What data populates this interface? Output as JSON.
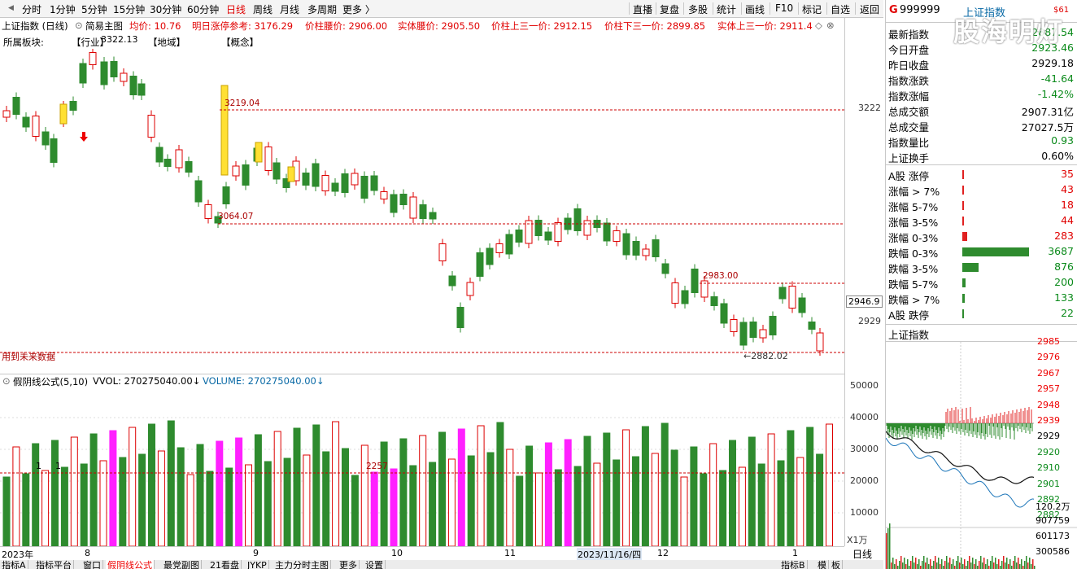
{
  "toolbar": {
    "left_items": [
      "分时",
      "1分钟",
      "5分钟",
      "15分钟",
      "30分钟",
      "60分钟",
      "日线",
      "周线",
      "月线",
      "多周期",
      "更多 〉"
    ],
    "active": "日线",
    "right_items": [
      "直播",
      "复盘",
      "多股",
      "统计",
      "画线",
      "F10",
      "标记",
      "自选",
      "返回"
    ]
  },
  "header": {
    "title": "上证指数 (日线)",
    "template": "简易主图",
    "junjia": "均价: 10.76",
    "zhangting": "明日涨停参考: 3176.29",
    "yaojia": "价柱腰价: 2906.00",
    "shiti_yao": "实体腰价: 2905.50",
    "zhushang": "价柱上三一价: 2912.15",
    "zhuxia": "价柱下三一价: 2899.85",
    "shitishang": "实体上三一价: 2911.4",
    "sector_label": "所属板块:",
    "industry": "【行业】",
    "region": "【地域】",
    "concept": "【概念】"
  },
  "annotations": {
    "high": "3322.13",
    "level1": "3219.04",
    "level2": "3064.07",
    "level3": "2983.00",
    "low": "←2882.02",
    "future_data": "用到未来数据",
    "vol_level": "2257"
  },
  "price_axis": {
    "labels": [
      "3222",
      "2929"
    ],
    "current_price_tag": "2946.9"
  },
  "volume_axis": {
    "labels": [
      "50000",
      "40000",
      "30000",
      "20000",
      "10000"
    ],
    "unit": "X1万"
  },
  "volume_header": {
    "title": "假阴线公式(5,10)",
    "vvol": "VVOL: 270275040.00↓",
    "volume": "VOLUME: 270275040.00↓"
  },
  "date_axis": {
    "labels": [
      "2023年",
      "8",
      "9",
      "10",
      "11",
      "2023/11/16/四",
      "12",
      "1"
    ]
  },
  "bottom_tabs": [
    "指标A",
    "指标平台",
    "窗口",
    "假阴线公式",
    "最党副图",
    "21看盘",
    "JYKP",
    "主力分时主图",
    "更多",
    "设置"
  ],
  "bottom_right_tabs": [
    "指标B",
    "模",
    "板"
  ],
  "bottom_right_label": "日线",
  "right_panel": {
    "code": "999999",
    "name": "上证指数",
    "g_label": "G",
    "badge": "$61",
    "stats": [
      {
        "k": "最新指数",
        "v": "2887.54",
        "c": "green"
      },
      {
        "k": "今日开盘",
        "v": "2923.46",
        "c": "green"
      },
      {
        "k": "昨日收盘",
        "v": "2929.18",
        "c": "black"
      },
      {
        "k": "指数涨跌",
        "v": "-41.64",
        "c": "green"
      },
      {
        "k": "指数涨幅",
        "v": "-1.42%",
        "c": "green"
      },
      {
        "k": "总成交额",
        "v": "2907.31亿",
        "c": "black"
      },
      {
        "k": "总成交量",
        "v": "27027.5万",
        "c": "black"
      },
      {
        "k": "指数量比",
        "v": "0.93",
        "c": "green"
      },
      {
        "k": "上证换手",
        "v": "0.60%",
        "c": "black"
      }
    ],
    "distribution": [
      {
        "k": "A股 涨停",
        "v": "35",
        "c": "red",
        "bar": 0.01
      },
      {
        "k": "涨幅 > 7%",
        "v": "43",
        "c": "red",
        "bar": 0.01
      },
      {
        "k": "涨幅 5-7%",
        "v": "18",
        "c": "red",
        "bar": 0.005
      },
      {
        "k": "涨幅 3-5%",
        "v": "44",
        "c": "red",
        "bar": 0.012
      },
      {
        "k": "涨幅 0-3%",
        "v": "283",
        "c": "red",
        "bar": 0.077
      },
      {
        "k": "跌幅 0-3%",
        "v": "3687",
        "c": "green",
        "bar": 1.0
      },
      {
        "k": "跌幅 3-5%",
        "v": "876",
        "c": "green",
        "bar": 0.238
      },
      {
        "k": "跌幅 5-7%",
        "v": "200",
        "c": "green",
        "bar": 0.054
      },
      {
        "k": "跌幅 > 7%",
        "v": "133",
        "c": "green",
        "bar": 0.036
      },
      {
        "k": "A股 跌停",
        "v": "22",
        "c": "green",
        "bar": 0.006
      }
    ],
    "mini_title": "上证指数",
    "mini_axis": [
      "2985",
      "2976",
      "2967",
      "2957",
      "2948",
      "2939",
      "2929",
      "2920",
      "2910",
      "2901",
      "2892",
      "2882"
    ],
    "mini_vol_axis": [
      "120.2万",
      "907759",
      "601173",
      "300586"
    ]
  },
  "watermark": "股海明灯"
}
